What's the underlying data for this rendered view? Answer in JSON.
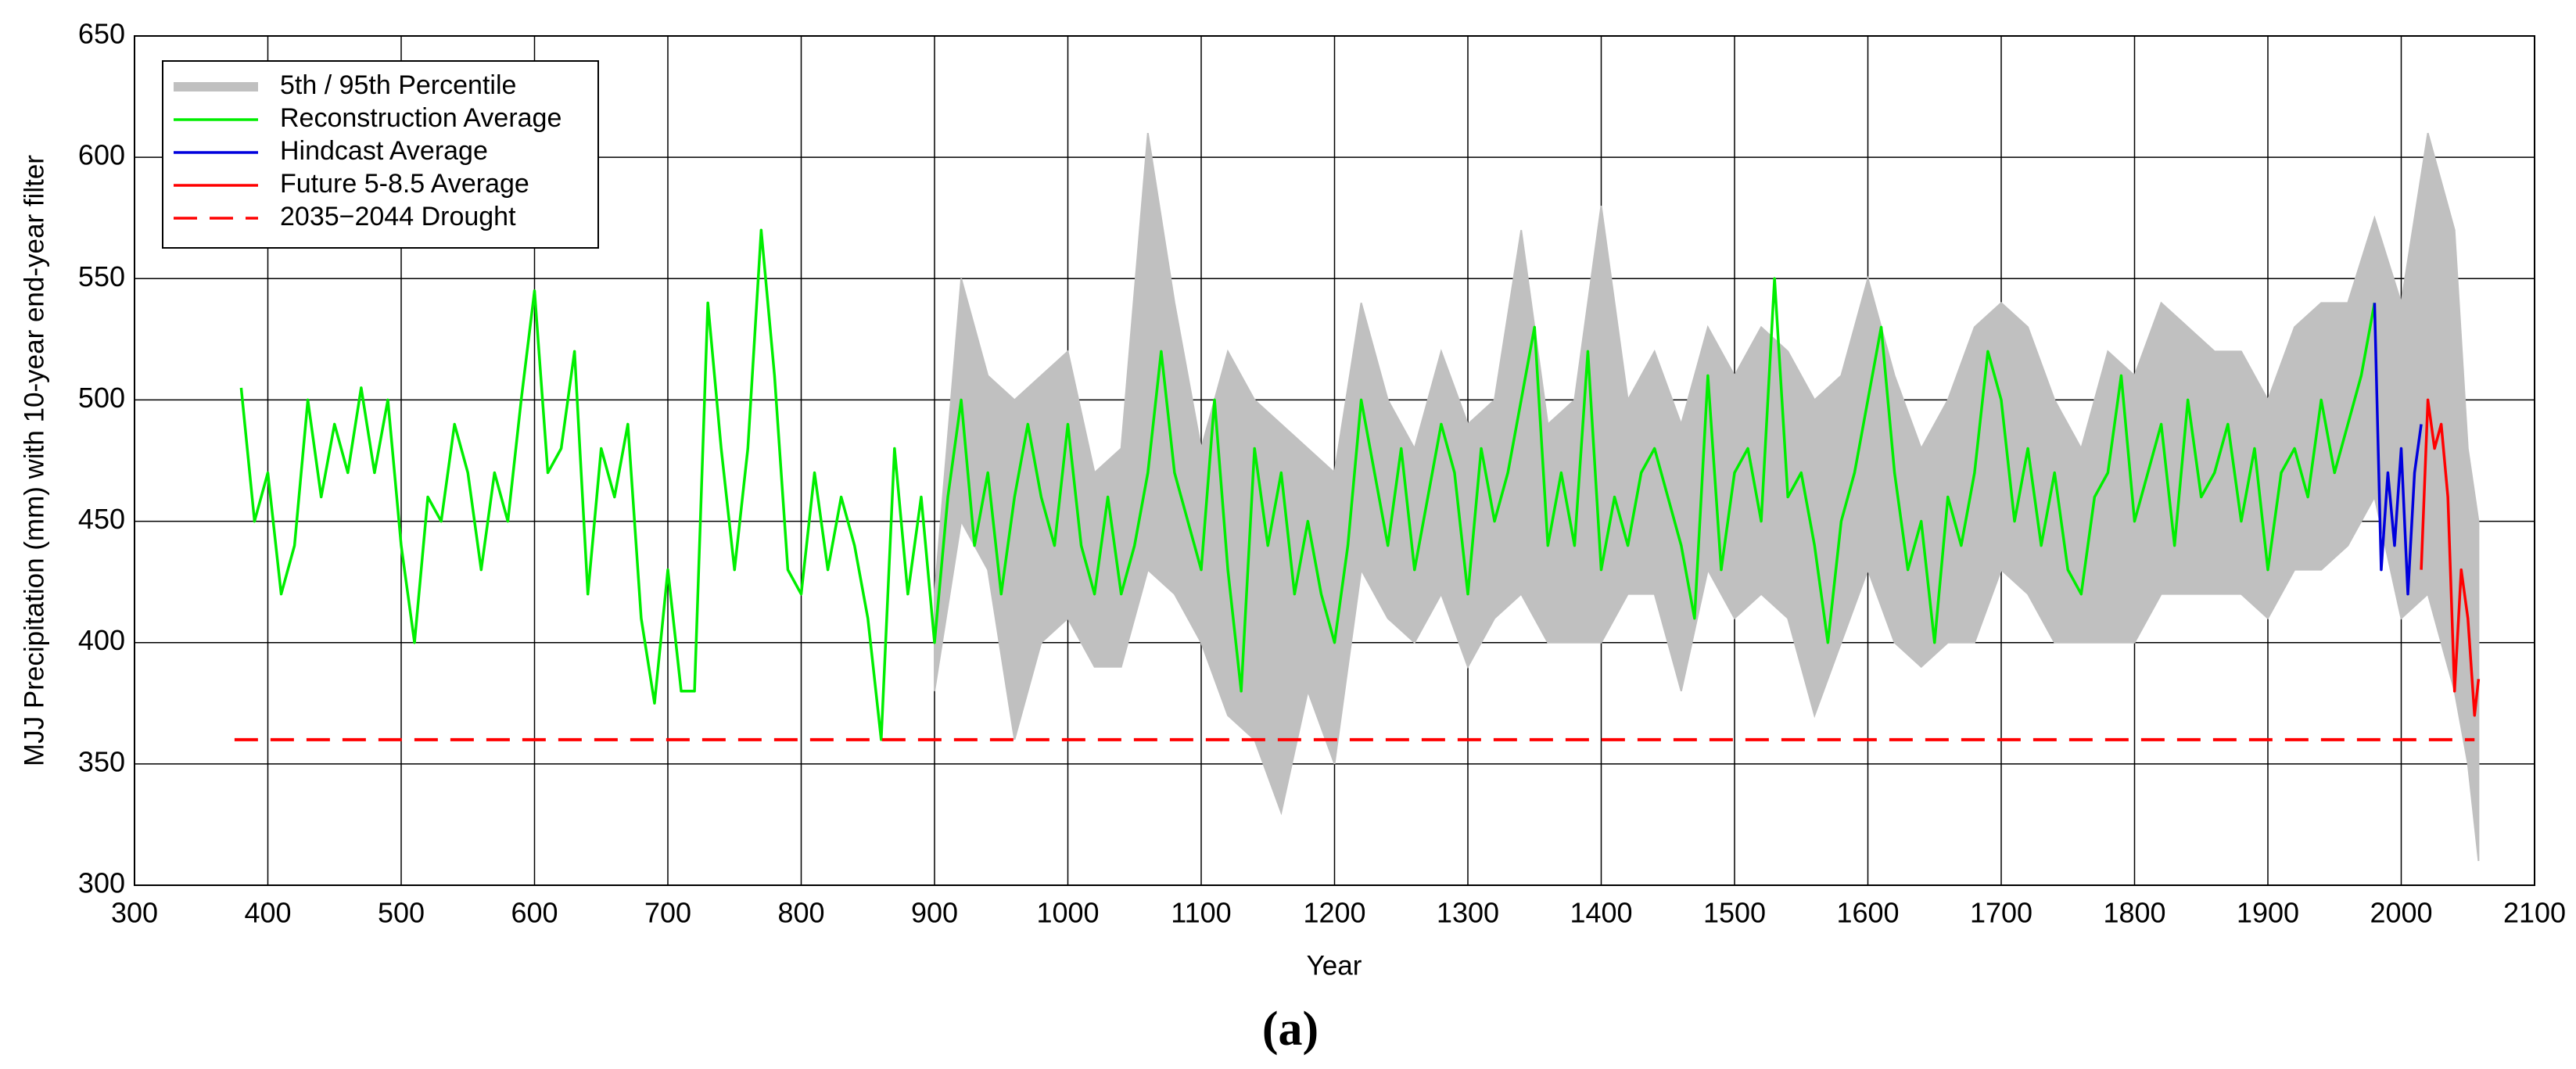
{
  "chart_data": {
    "type": "line",
    "x_label": "Year",
    "y_label": "MJJ Precipitation (mm) with 10-year end-year filter",
    "caption": "(a)",
    "xlim": [
      300,
      2100
    ],
    "xticks": [
      300,
      400,
      500,
      600,
      700,
      800,
      900,
      1000,
      1100,
      1200,
      1300,
      1400,
      1500,
      1600,
      1700,
      1800,
      1900,
      2000,
      2100
    ],
    "ylim": [
      300,
      650
    ],
    "yticks": [
      300,
      350,
      400,
      450,
      500,
      550,
      600,
      650
    ],
    "grid": true,
    "legend": "upper left",
    "band": {
      "name": "5th / 95th Percentile",
      "color": "#c0c0c0",
      "x": [
        900,
        920,
        940,
        960,
        980,
        1000,
        1020,
        1040,
        1060,
        1080,
        1100,
        1120,
        1140,
        1160,
        1180,
        1200,
        1220,
        1240,
        1260,
        1280,
        1300,
        1320,
        1340,
        1360,
        1380,
        1400,
        1420,
        1440,
        1460,
        1480,
        1500,
        1520,
        1540,
        1560,
        1580,
        1600,
        1620,
        1640,
        1660,
        1680,
        1700,
        1720,
        1740,
        1760,
        1780,
        1800,
        1820,
        1840,
        1860,
        1880,
        1900,
        1920,
        1940,
        1960,
        1980,
        2000,
        2020,
        2040,
        2050,
        2058
      ],
      "lower": [
        380,
        450,
        430,
        360,
        400,
        410,
        390,
        390,
        430,
        420,
        400,
        370,
        360,
        330,
        380,
        350,
        430,
        410,
        400,
        420,
        390,
        410,
        420,
        400,
        400,
        400,
        420,
        420,
        380,
        430,
        410,
        420,
        410,
        370,
        400,
        430,
        400,
        390,
        400,
        400,
        430,
        420,
        400,
        400,
        400,
        400,
        420,
        420,
        420,
        420,
        410,
        430,
        430,
        440,
        460,
        410,
        420,
        380,
        350,
        310
      ],
      "upper": [
        420,
        550,
        510,
        500,
        510,
        520,
        470,
        480,
        610,
        540,
        480,
        520,
        500,
        490,
        480,
        470,
        540,
        500,
        480,
        520,
        490,
        500,
        570,
        490,
        500,
        580,
        500,
        520,
        490,
        530,
        510,
        530,
        520,
        500,
        510,
        550,
        510,
        480,
        500,
        530,
        540,
        530,
        500,
        480,
        520,
        510,
        540,
        530,
        520,
        520,
        500,
        530,
        540,
        540,
        575,
        540,
        610,
        570,
        480,
        450
      ]
    },
    "series": [
      {
        "name": "Reconstruction Average",
        "color": "#00ee00",
        "dash": false,
        "x": [
          380,
          390,
          400,
          410,
          420,
          430,
          440,
          450,
          460,
          470,
          480,
          490,
          500,
          510,
          520,
          530,
          540,
          550,
          560,
          570,
          580,
          590,
          600,
          610,
          620,
          630,
          640,
          650,
          660,
          670,
          680,
          690,
          700,
          710,
          720,
          730,
          740,
          750,
          760,
          770,
          780,
          790,
          800,
          810,
          820,
          830,
          840,
          850,
          860,
          870,
          880,
          890,
          900,
          910,
          920,
          930,
          940,
          950,
          960,
          970,
          980,
          990,
          1000,
          1010,
          1020,
          1030,
          1040,
          1050,
          1060,
          1070,
          1080,
          1090,
          1100,
          1110,
          1120,
          1130,
          1140,
          1150,
          1160,
          1170,
          1180,
          1190,
          1200,
          1210,
          1220,
          1230,
          1240,
          1250,
          1260,
          1270,
          1280,
          1290,
          1300,
          1310,
          1320,
          1330,
          1340,
          1350,
          1360,
          1370,
          1380,
          1390,
          1400,
          1410,
          1420,
          1430,
          1440,
          1450,
          1460,
          1470,
          1480,
          1490,
          1500,
          1510,
          1520,
          1530,
          1540,
          1550,
          1560,
          1570,
          1580,
          1590,
          1600,
          1610,
          1620,
          1630,
          1640,
          1650,
          1660,
          1670,
          1680,
          1690,
          1700,
          1710,
          1720,
          1730,
          1740,
          1750,
          1760,
          1770,
          1780,
          1790,
          1800,
          1810,
          1820,
          1830,
          1840,
          1850,
          1860,
          1870,
          1880,
          1890,
          1900,
          1910,
          1920,
          1930,
          1940,
          1950,
          1960,
          1970,
          1980
        ],
        "values": [
          505,
          450,
          470,
          420,
          440,
          500,
          460,
          490,
          470,
          505,
          470,
          500,
          440,
          400,
          460,
          450,
          490,
          470,
          430,
          470,
          450,
          500,
          545,
          470,
          480,
          520,
          420,
          480,
          460,
          490,
          410,
          375,
          430,
          380,
          380,
          540,
          480,
          430,
          480,
          570,
          510,
          430,
          420,
          470,
          430,
          460,
          440,
          410,
          360,
          480,
          420,
          460,
          400,
          460,
          500,
          440,
          470,
          420,
          460,
          490,
          460,
          440,
          490,
          440,
          420,
          460,
          420,
          440,
          470,
          520,
          470,
          450,
          430,
          500,
          430,
          380,
          480,
          440,
          470,
          420,
          450,
          420,
          400,
          440,
          500,
          470,
          440,
          480,
          430,
          460,
          490,
          470,
          420,
          480,
          450,
          470,
          500,
          530,
          440,
          470,
          440,
          520,
          430,
          460,
          440,
          470,
          480,
          460,
          440,
          410,
          510,
          430,
          470,
          480,
          450,
          550,
          460,
          470,
          440,
          400,
          450,
          470,
          500,
          530,
          470,
          430,
          450,
          400,
          460,
          440,
          470,
          520,
          500,
          450,
          480,
          440,
          470,
          430,
          420,
          460,
          470,
          510,
          450,
          470,
          490,
          440,
          500,
          460,
          470,
          490,
          450,
          480,
          430,
          470,
          480,
          460,
          500,
          470,
          490,
          510,
          540
        ]
      },
      {
        "name": "Hindcast Average",
        "color": "#0000dd",
        "dash": false,
        "x": [
          1980,
          1985,
          1990,
          1995,
          2000,
          2005,
          2010,
          2015
        ],
        "values": [
          540,
          430,
          470,
          440,
          480,
          420,
          470,
          490
        ]
      },
      {
        "name": "Future 5-8.5 Average",
        "color": "#ff0000",
        "dash": false,
        "x": [
          2015,
          2020,
          2025,
          2030,
          2035,
          2040,
          2045,
          2050,
          2055,
          2058
        ],
        "values": [
          430,
          500,
          480,
          490,
          460,
          380,
          430,
          410,
          370,
          385
        ]
      },
      {
        "name": "2035−2044 Drought",
        "color": "#ff0000",
        "dash": true,
        "x": [
          375,
          2055
        ],
        "values": [
          360,
          360
        ]
      }
    ]
  }
}
